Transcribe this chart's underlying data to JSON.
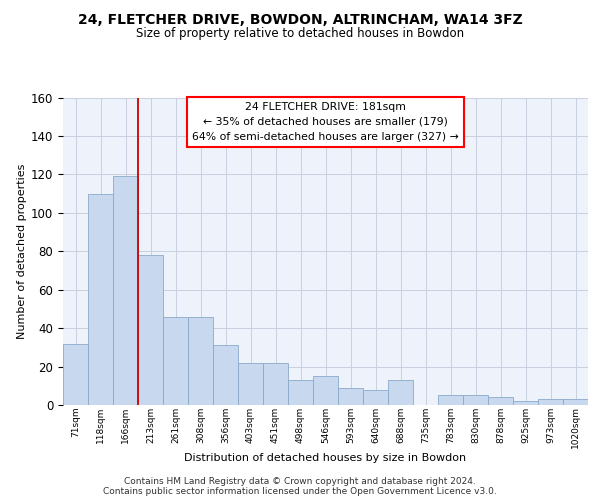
{
  "title": "24, FLETCHER DRIVE, BOWDON, ALTRINCHAM, WA14 3FZ",
  "subtitle": "Size of property relative to detached houses in Bowdon",
  "xlabel": "Distribution of detached houses by size in Bowdon",
  "ylabel": "Number of detached properties",
  "bar_color": "#c8d8ee",
  "bar_edge_color": "#7aaar0",
  "categories": [
    "71sqm",
    "118sqm",
    "166sqm",
    "213sqm",
    "261sqm",
    "308sqm",
    "356sqm",
    "403sqm",
    "451sqm",
    "498sqm",
    "546sqm",
    "593sqm",
    "640sqm",
    "688sqm",
    "735sqm",
    "783sqm",
    "830sqm",
    "878sqm",
    "925sqm",
    "973sqm",
    "1020sqm"
  ],
  "bar_heights": [
    32,
    110,
    119,
    78,
    46,
    46,
    31,
    22,
    22,
    13,
    15,
    9,
    8,
    13,
    0,
    5,
    5,
    4,
    2,
    3,
    3
  ],
  "property_line_x": 2.5,
  "annotation_line1": "24 FLETCHER DRIVE: 181sqm",
  "annotation_line2": "← 35% of detached houses are smaller (179)",
  "annotation_line3": "64% of semi-detached houses are larger (327) →",
  "line_color": "#cc0000",
  "footer1": "Contains HM Land Registry data © Crown copyright and database right 2024.",
  "footer2": "Contains public sector information licensed under the Open Government Licence v3.0.",
  "ylim": [
    0,
    160
  ],
  "yticks": [
    0,
    20,
    40,
    60,
    80,
    100,
    120,
    140,
    160
  ],
  "grid_color": "#c8cfe0",
  "bg_color": "#eef2fa"
}
